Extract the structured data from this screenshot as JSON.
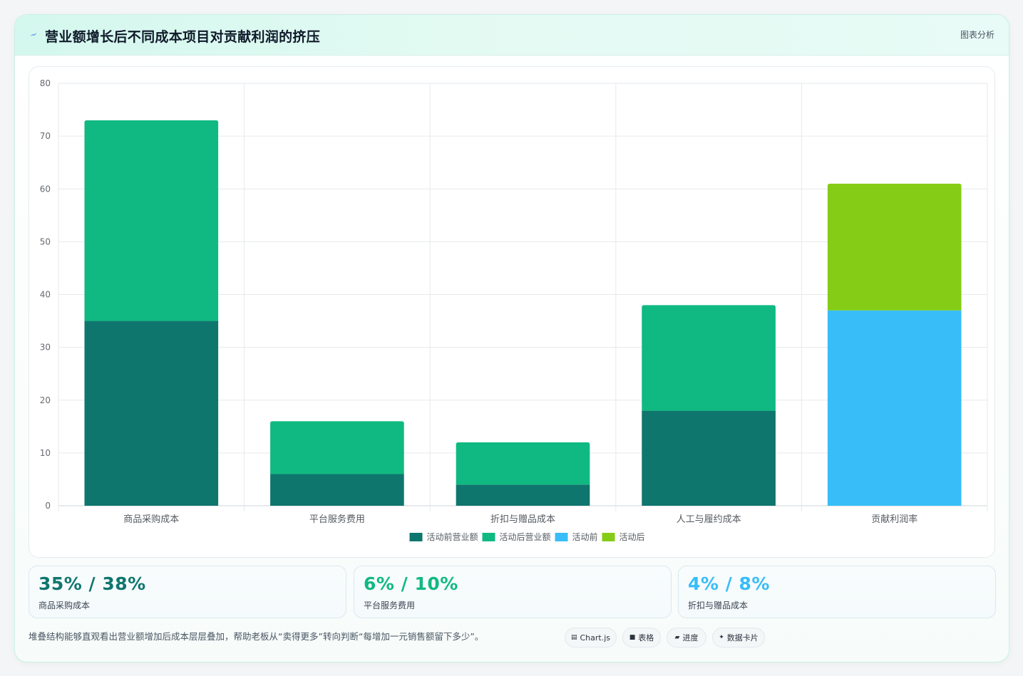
{
  "header": {
    "title": "营业额增长后不同成本项目对贡献利润的挤压",
    "tag": "图表分析",
    "icon": "lightning-icon"
  },
  "chart_data": {
    "type": "bar",
    "stacked": true,
    "categories": [
      "商品采购成本",
      "平台服务费用",
      "折扣与赠品成本",
      "人工与履约成本",
      "贡献利润率"
    ],
    "series": [
      {
        "name": "活动前营业额",
        "color": "#0f766e",
        "values": [
          35,
          6,
          4,
          18,
          null
        ]
      },
      {
        "name": "活动后营业额",
        "color": "#10b981",
        "values": [
          38,
          10,
          8,
          20,
          null
        ]
      },
      {
        "name": "活动前",
        "color": "#38bdf8",
        "values": [
          null,
          null,
          null,
          null,
          37
        ]
      },
      {
        "name": "活动后",
        "color": "#84cc16",
        "values": [
          null,
          null,
          null,
          null,
          24
        ]
      }
    ],
    "ylim": [
      0,
      80
    ],
    "yticks": [
      0,
      10,
      20,
      30,
      40,
      50,
      60,
      70,
      80
    ],
    "grid": true,
    "legend_position": "bottom"
  },
  "stats": [
    {
      "value": "35% / 38%",
      "label": "商品采购成本",
      "color": "#0f766e"
    },
    {
      "value": "6% / 10%",
      "label": "平台服务费用",
      "color": "#10b981"
    },
    {
      "value": "4% / 8%",
      "label": "折扣与赠品成本",
      "color": "#38bdf8"
    }
  ],
  "footnote": "堆叠结构能够直观看出营业额增加后成本层层叠加，帮助老板从“卖得更多”转向判断“每增加一元销售额留下多少”。",
  "pills": [
    {
      "icon": "chart-icon",
      "glyph": "▤",
      "label": "Chart.js"
    },
    {
      "icon": "table-icon",
      "glyph": "■",
      "label": "表格"
    },
    {
      "icon": "progress-icon",
      "glyph": "▰",
      "label": "进度"
    },
    {
      "icon": "sparkle-icon",
      "glyph": "✦",
      "label": "数据卡片"
    }
  ]
}
